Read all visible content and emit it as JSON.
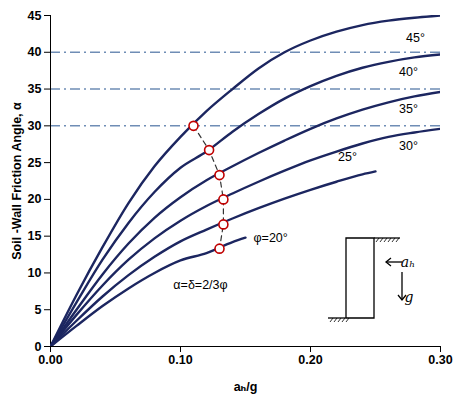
{
  "chart_data": {
    "type": "line",
    "x_label": "aₕ/g",
    "y_label": "Soil -Wall Friction Angle, α",
    "xlim": [
      0,
      0.3
    ],
    "xticks": [
      {
        "value": 0,
        "label": "0.00"
      },
      {
        "value": 0.1,
        "label": "0.10"
      },
      {
        "value": 0.2,
        "label": "0.20"
      },
      {
        "value": 0.3,
        "label": "0.30"
      }
    ],
    "ylim": [
      0,
      45
    ],
    "yticks": [
      0,
      5,
      10,
      15,
      20,
      25,
      30,
      35,
      40,
      45
    ],
    "grid": false,
    "reference_lines": {
      "values": [
        30,
        35,
        40
      ],
      "color": "#6f8db5",
      "line_style": "dashdot"
    },
    "series": [
      {
        "name": "45°",
        "color": "#1c2660",
        "line_style": "solid",
        "x": [
          0,
          0.02,
          0.04,
          0.06,
          0.08,
          0.1,
          0.12,
          0.14,
          0.16,
          0.18,
          0.2,
          0.22,
          0.24,
          0.26,
          0.28,
          0.3
        ],
        "values": [
          0,
          7,
          13.5,
          19.5,
          24.5,
          28.5,
          32,
          35,
          37.8,
          40,
          41.6,
          42.8,
          43.7,
          44.3,
          44.7,
          45
        ]
      },
      {
        "name": "40°",
        "color": "#1c2660",
        "line_style": "solid",
        "x": [
          0,
          0.02,
          0.04,
          0.06,
          0.08,
          0.1,
          0.12,
          0.14,
          0.16,
          0.18,
          0.2,
          0.22,
          0.24,
          0.26,
          0.28,
          0.3
        ],
        "values": [
          0,
          6,
          11.8,
          16.8,
          21,
          24.3,
          26.5,
          29.2,
          31.6,
          33.7,
          35.4,
          36.8,
          37.9,
          38.7,
          39.3,
          39.7
        ]
      },
      {
        "name": "35°",
        "color": "#1c2660",
        "line_style": "solid",
        "x": [
          0,
          0.02,
          0.04,
          0.06,
          0.08,
          0.1,
          0.12,
          0.14,
          0.16,
          0.18,
          0.2,
          0.22,
          0.24,
          0.26,
          0.28,
          0.3
        ],
        "values": [
          0,
          5,
          9.8,
          14,
          17.5,
          20.3,
          22.6,
          24.5,
          26.3,
          28,
          29.6,
          31,
          32.2,
          33.2,
          34,
          34.6
        ]
      },
      {
        "name": "30°",
        "color": "#1c2660",
        "line_style": "solid",
        "x": [
          0,
          0.02,
          0.04,
          0.06,
          0.08,
          0.1,
          0.12,
          0.14,
          0.16,
          0.18,
          0.2,
          0.22,
          0.24,
          0.26,
          0.28,
          0.3
        ],
        "values": [
          0,
          4.3,
          8.3,
          11.8,
          14.7,
          17.1,
          19.1,
          20.8,
          22.4,
          23.9,
          25.3,
          26.5,
          27.6,
          28.5,
          29.1,
          29.6
        ]
      },
      {
        "name": "25°",
        "color": "#1c2660",
        "line_style": "solid",
        "x": [
          0,
          0.02,
          0.04,
          0.06,
          0.08,
          0.1,
          0.12,
          0.14,
          0.16,
          0.18,
          0.2,
          0.22,
          0.24,
          0.25
        ],
        "values": [
          0,
          3.5,
          6.8,
          9.7,
          12.2,
          14.3,
          15.9,
          17.4,
          18.8,
          20.1,
          21.3,
          22.4,
          23.4,
          23.8
        ]
      },
      {
        "name": "φ=20°",
        "color": "#1c2660",
        "line_style": "solid",
        "x": [
          0,
          0.02,
          0.04,
          0.06,
          0.08,
          0.1,
          0.12,
          0.14,
          0.15
        ],
        "values": [
          0,
          2.8,
          5.5,
          7.9,
          10,
          11.7,
          12.7,
          14.2,
          14.8
        ]
      },
      {
        "name": "α=δ=2/3φ",
        "color": "#c00000",
        "line_style": "dashed",
        "marker": "circle",
        "x": [
          0.11,
          0.122,
          0.13,
          0.133,
          0.133,
          0.13
        ],
        "values": [
          30,
          26.7,
          23.3,
          20,
          16.6,
          13.3
        ]
      }
    ],
    "inset": {
      "acceleration_label": "aₕ",
      "gravity_label": "g"
    }
  }
}
